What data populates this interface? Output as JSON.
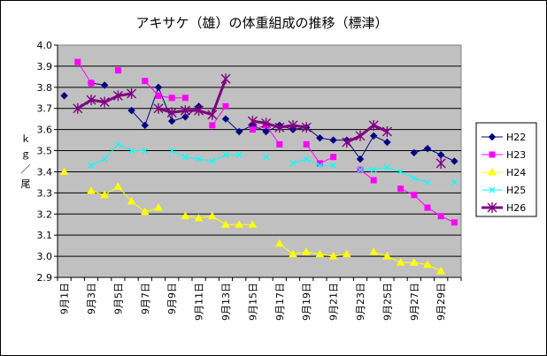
{
  "chart_data": {
    "type": "line",
    "title": "アキサケ（雄）の体重組成の推移（標津）",
    "ylabel": "ｋｇ／尾",
    "xlabel": "",
    "ylim": [
      2.9,
      4.0
    ],
    "yticks": [
      "2.9",
      "3.0",
      "3.1",
      "3.2",
      "3.3",
      "3.4",
      "3.5",
      "3.6",
      "3.7",
      "3.8",
      "3.9",
      "4.0"
    ],
    "grid": true,
    "legend_position": "right",
    "categories": [
      "9月1日",
      "9月2日",
      "9月3日",
      "9月4日",
      "9月5日",
      "9月6日",
      "9月7日",
      "9月8日",
      "9月9日",
      "9月10日",
      "9月11日",
      "9月12日",
      "9月13日",
      "9月14日",
      "9月15日",
      "9月16日",
      "9月17日",
      "9月18日",
      "9月19日",
      "9月20日",
      "9月21日",
      "9月22日",
      "9月23日",
      "9月24日",
      "9月25日",
      "9月26日",
      "9月27日",
      "9月28日",
      "9月29日",
      "9月30日"
    ],
    "xtick_labels": [
      "9月1日",
      "9月3日",
      "9月5日",
      "9月7日",
      "9月9日",
      "9月11日",
      "9月13日",
      "9月15日",
      "9月17日",
      "9月19日",
      "9月21日",
      "9月23日",
      "9月25日",
      "9月27日",
      "9月29日"
    ],
    "series": [
      {
        "name": "H22",
        "color": "#000080",
        "marker": "diamond",
        "width": 1,
        "values": [
          3.76,
          null,
          3.82,
          3.81,
          null,
          3.69,
          3.62,
          3.8,
          3.64,
          3.66,
          3.71,
          null,
          3.65,
          3.59,
          3.62,
          3.59,
          3.62,
          3.6,
          3.61,
          3.56,
          3.55,
          3.55,
          3.46,
          3.57,
          3.54,
          null,
          3.49,
          3.51,
          3.48,
          3.45
        ]
      },
      {
        "name": "H23",
        "color": "#ff00ff",
        "marker": "square",
        "width": 1,
        "values": [
          null,
          3.92,
          3.82,
          null,
          3.88,
          null,
          3.83,
          3.76,
          3.75,
          3.75,
          null,
          3.62,
          3.71,
          null,
          3.6,
          3.62,
          3.53,
          null,
          3.53,
          3.44,
          3.47,
          null,
          3.41,
          3.36,
          null,
          3.32,
          3.29,
          3.23,
          3.19,
          3.16
        ]
      },
      {
        "name": "H24",
        "color": "#ffff00",
        "marker": "triangle",
        "width": 1,
        "values": [
          3.4,
          null,
          3.31,
          3.29,
          3.33,
          3.26,
          3.21,
          3.23,
          null,
          3.19,
          3.18,
          3.19,
          3.15,
          3.15,
          3.15,
          null,
          3.06,
          3.01,
          3.02,
          3.01,
          3.0,
          3.01,
          null,
          3.02,
          3.0,
          2.97,
          2.97,
          2.96,
          2.93,
          null
        ]
      },
      {
        "name": "H25",
        "color": "#00ffff",
        "marker": "x",
        "width": 1,
        "values": [
          null,
          null,
          3.43,
          3.46,
          3.53,
          3.5,
          3.5,
          null,
          3.5,
          3.47,
          3.46,
          3.45,
          3.48,
          3.48,
          null,
          3.47,
          null,
          3.44,
          3.46,
          3.43,
          3.43,
          null,
          3.41,
          3.41,
          3.42,
          3.4,
          3.37,
          3.35,
          null,
          3.35
        ]
      },
      {
        "name": "H26",
        "color": "#800080",
        "marker": "star",
        "width": 3,
        "values": [
          null,
          3.7,
          3.74,
          3.73,
          3.76,
          3.77,
          null,
          3.7,
          3.68,
          3.69,
          3.69,
          3.67,
          3.84,
          null,
          3.64,
          3.63,
          3.61,
          3.62,
          3.61,
          null,
          null,
          3.54,
          3.57,
          3.62,
          3.59,
          null,
          null,
          null,
          3.44,
          null
        ]
      }
    ]
  }
}
